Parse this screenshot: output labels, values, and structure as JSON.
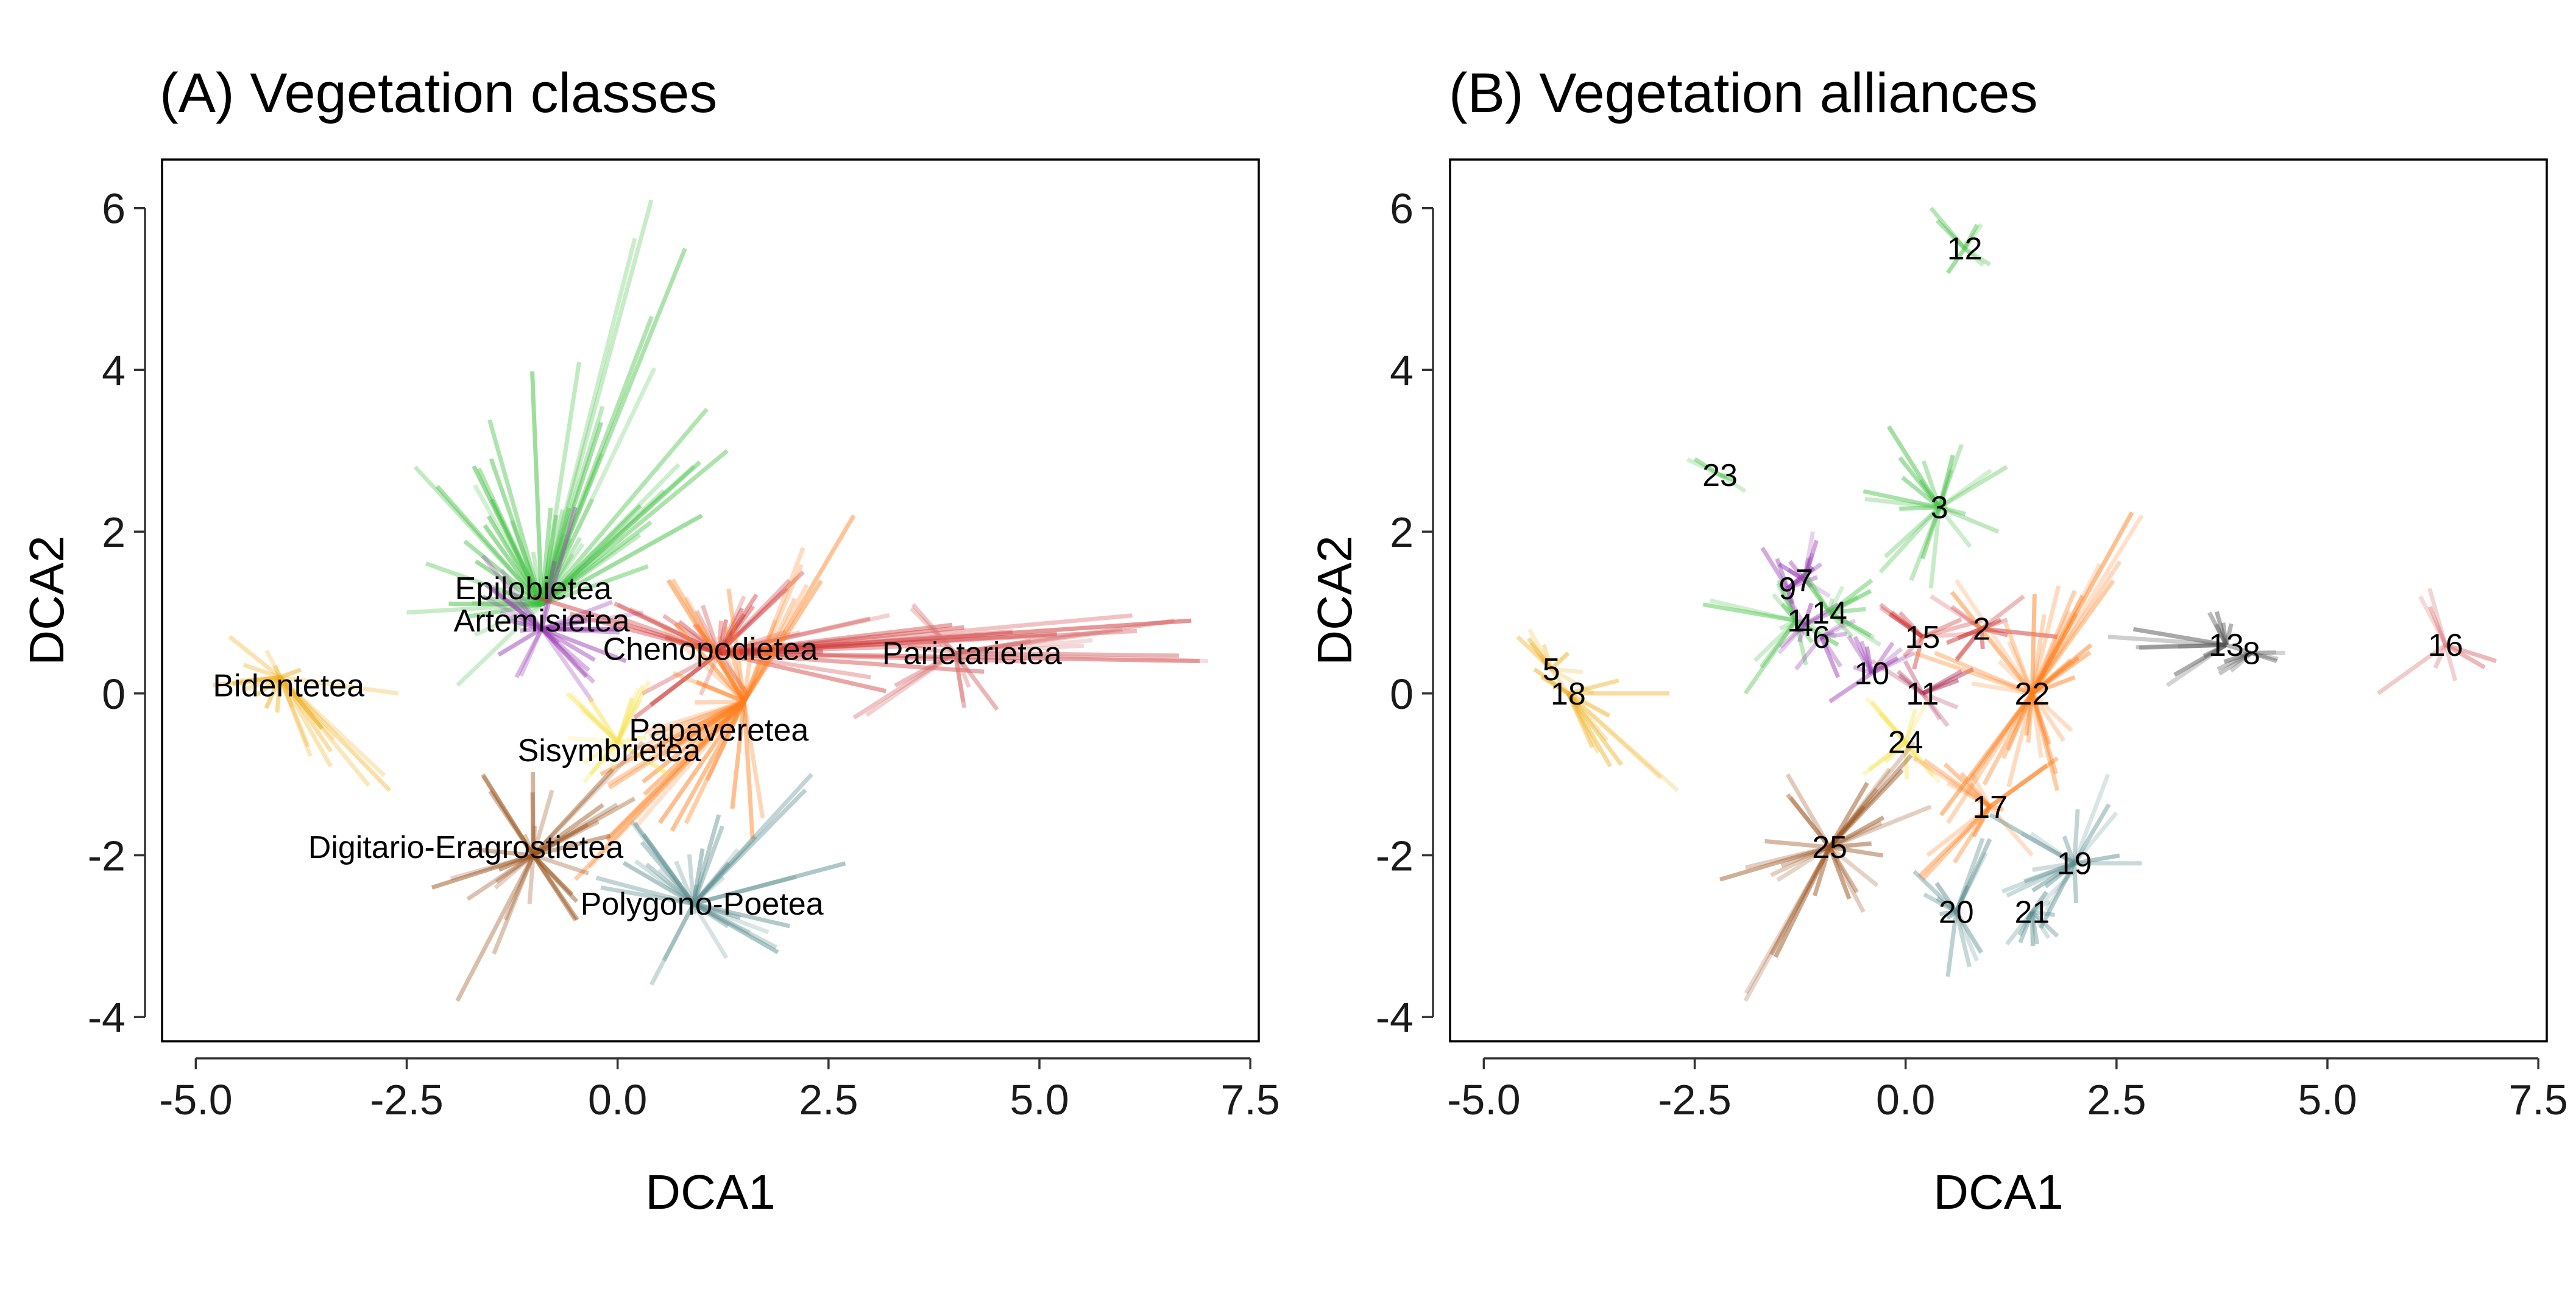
{
  "chart_data": [
    {
      "type": "scatter",
      "subtype": "spider",
      "title": "(A) Vegetation classes",
      "xlabel": "DCA1",
      "ylabel": "DCA2",
      "xlim": [
        -5.4,
        7.6
      ],
      "ylim": [
        -4.3,
        6.6
      ],
      "xticks": [
        "-5.0",
        "-2.5",
        "0.0",
        "2.5",
        "5.0",
        "7.5"
      ],
      "yticks": [
        "-4",
        "-2",
        "0",
        "2",
        "4",
        "6"
      ],
      "xtick_values": [
        -5,
        -2.5,
        0,
        2.5,
        5,
        7.5
      ],
      "ytick_values": [
        -4,
        -2,
        0,
        2,
        4,
        6
      ],
      "grid": false,
      "groups": [
        {
          "label": "Epilobietea",
          "color": "#3fbf3f",
          "center": [
            -0.9,
            1.1
          ],
          "label_pos": [
            -1.0,
            1.3
          ],
          "spread": [
            [
              -2.4,
              2.8
            ],
            [
              -1.5,
              2.9
            ],
            [
              0.4,
              6.1
            ],
            [
              0.8,
              5.5
            ],
            [
              1.3,
              3.0
            ],
            [
              1.0,
              2.2
            ],
            [
              -2.5,
              1.0
            ],
            [
              -1.9,
              0.1
            ],
            [
              -0.3,
              2.4
            ]
          ],
          "n": 55
        },
        {
          "label": "Artemisietea",
          "color": "#9b3fb5",
          "center": [
            -0.9,
            0.8
          ],
          "label_pos": [
            -0.9,
            0.9
          ],
          "spread": [
            [
              -1.6,
              1.7
            ],
            [
              -0.5,
              2.3
            ],
            [
              0.3,
              1.0
            ],
            [
              -0.3,
              -0.1
            ],
            [
              -1.2,
              0.2
            ],
            [
              -1.6,
              1.2
            ],
            [
              0.1,
              0.4
            ]
          ],
          "n": 30
        },
        {
          "label": "Chenopodietea",
          "color": "#d03535",
          "center": [
            1.2,
            0.5
          ],
          "label_pos": [
            1.1,
            0.55
          ],
          "spread": [
            [
              -1.0,
              1.2
            ],
            [
              6.9,
              0.4
            ],
            [
              6.8,
              0.9
            ],
            [
              2.2,
              1.5
            ],
            [
              0.2,
              -0.3
            ],
            [
              1.5,
              1.2
            ],
            [
              3.0,
              0.2
            ],
            [
              0.0,
              1.1
            ]
          ],
          "n": 45
        },
        {
          "label": "Parietarietea",
          "color": "#d76b6b",
          "center": [
            4.0,
            0.5
          ],
          "label_pos": [
            4.2,
            0.5
          ],
          "spread": [
            [
              2.8,
              -0.3
            ],
            [
              7.0,
              0.4
            ],
            [
              6.6,
              0.9
            ],
            [
              3.5,
              1.1
            ],
            [
              4.5,
              -0.2
            ]
          ],
          "n": 20
        },
        {
          "label": "Bidentetea",
          "color": "#f0b020",
          "center": [
            -4.0,
            0.2
          ],
          "label_pos": [
            -3.9,
            0.1
          ],
          "spread": [
            [
              -4.6,
              0.7
            ],
            [
              -2.7,
              -1.2
            ],
            [
              -2.6,
              0.0
            ],
            [
              -4.8,
              0.1
            ],
            [
              -3.4,
              -0.9
            ]
          ],
          "n": 25
        },
        {
          "label": "Papaveretea",
          "color": "#ff7f1e",
          "center": [
            1.5,
            -0.1
          ],
          "label_pos": [
            1.2,
            -0.45
          ],
          "spread": [
            [
              -0.5,
              -2.3
            ],
            [
              2.8,
              2.2
            ],
            [
              0.5,
              -1.6
            ],
            [
              0.6,
              1.4
            ],
            [
              2.2,
              1.8
            ],
            [
              -0.2,
              -1.0
            ],
            [
              1.6,
              -1.8
            ]
          ],
          "n": 45
        },
        {
          "label": "Sisymbrietea",
          "color": "#f7e350",
          "center": [
            0.0,
            -0.6
          ],
          "label_pos": [
            -0.1,
            -0.7
          ],
          "spread": [
            [
              -0.6,
              0.0
            ],
            [
              0.6,
              -1.0
            ],
            [
              -0.4,
              -1.1
            ],
            [
              0.3,
              0.1
            ]
          ],
          "n": 18
        },
        {
          "label": "Digitario-Eragrostietea",
          "color": "#9a5420",
          "center": [
            -1.0,
            -2.0
          ],
          "label_pos": [
            -1.8,
            -1.9
          ],
          "spread": [
            [
              -1.9,
              -3.8
            ],
            [
              -2.2,
              -2.4
            ],
            [
              0.3,
              -0.6
            ],
            [
              -0.5,
              -2.8
            ],
            [
              -1.6,
              -1.0
            ],
            [
              0.2,
              -1.3
            ]
          ],
          "n": 35
        },
        {
          "label": "Polygono-Poetea",
          "color": "#5e8f91",
          "center": [
            0.9,
            -2.6
          ],
          "label_pos": [
            1.0,
            -2.6
          ],
          "spread": [
            [
              0.4,
              -3.6
            ],
            [
              2.7,
              -2.1
            ],
            [
              2.3,
              -1.0
            ],
            [
              0.2,
              -1.6
            ],
            [
              1.9,
              -3.2
            ],
            [
              -0.2,
              -2.4
            ],
            [
              1.2,
              -1.5
            ]
          ],
          "n": 35
        }
      ]
    },
    {
      "type": "scatter",
      "subtype": "spider",
      "title": "(B) Vegetation alliances",
      "xlabel": "DCA1",
      "ylabel": "DCA2",
      "xlim": [
        -5.4,
        7.6
      ],
      "ylim": [
        -4.3,
        6.6
      ],
      "xticks": [
        "-5.0",
        "-2.5",
        "0.0",
        "2.5",
        "5.0",
        "7.5"
      ],
      "yticks": [
        "-4",
        "-2",
        "0",
        "2",
        "4",
        "6"
      ],
      "xtick_values": [
        -5,
        -2.5,
        0,
        2.5,
        5,
        7.5
      ],
      "ytick_values": [
        -4,
        -2,
        0,
        2,
        4,
        6
      ],
      "grid": false,
      "groups": [
        {
          "label": "12",
          "color": "#48c148",
          "center": [
            0.7,
            5.5
          ],
          "spread": [
            [
              0.3,
              6.0
            ],
            [
              1.0,
              5.3
            ],
            [
              0.5,
              5.2
            ],
            [
              0.9,
              5.8
            ]
          ],
          "n": 8
        },
        {
          "label": "23",
          "color": "#48c148",
          "center": [
            -2.2,
            2.7
          ],
          "spread": [
            [
              -2.5,
              2.9
            ],
            [
              -1.9,
              2.5
            ]
          ],
          "n": 5
        },
        {
          "label": "3",
          "color": "#48c148",
          "center": [
            0.4,
            2.3
          ],
          "spread": [
            [
              -0.2,
              3.3
            ],
            [
              1.2,
              2.8
            ],
            [
              -0.3,
              1.5
            ],
            [
              0.3,
              1.3
            ],
            [
              1.1,
              2.0
            ],
            [
              -0.5,
              2.5
            ]
          ],
          "n": 22
        },
        {
          "label": "9",
          "color": "#9b3fb5",
          "center": [
            -1.4,
            1.3
          ],
          "spread": [
            [
              -1.7,
              1.8
            ],
            [
              -1.0,
              1.6
            ],
            [
              -1.3,
              0.9
            ]
          ],
          "n": 10
        },
        {
          "label": "7",
          "color": "#9b3fb5",
          "center": [
            -1.2,
            1.4
          ],
          "spread": [
            [
              -1.1,
              2.0
            ],
            [
              -0.9,
              1.2
            ],
            [
              -1.5,
              1.6
            ]
          ],
          "n": 10
        },
        {
          "label": "1",
          "color": "#48c148",
          "center": [
            -1.3,
            0.9
          ],
          "spread": [
            [
              -2.4,
              1.1
            ],
            [
              -1.9,
              0.0
            ],
            [
              -1.5,
              1.4
            ],
            [
              -0.8,
              0.6
            ]
          ],
          "n": 15
        },
        {
          "label": "4",
          "color": "#9b3fb5",
          "center": [
            -1.2,
            0.85
          ],
          "spread": [
            [
              -1.5,
              0.5
            ],
            [
              -0.8,
              1.1
            ],
            [
              -1.4,
              1.2
            ]
          ],
          "n": 8
        },
        {
          "label": "6",
          "color": "#9b3fb5",
          "center": [
            -1.0,
            0.7
          ],
          "spread": [
            [
              -1.3,
              0.3
            ],
            [
              -0.6,
              0.9
            ],
            [
              -0.8,
              0.2
            ]
          ],
          "n": 8
        },
        {
          "label": "14",
          "color": "#48c148",
          "center": [
            -0.9,
            1.0
          ],
          "spread": [
            [
              -0.4,
              1.4
            ],
            [
              -0.3,
              0.6
            ],
            [
              -1.2,
              1.5
            ]
          ],
          "n": 12
        },
        {
          "label": "10",
          "color": "#9b3fb5",
          "center": [
            -0.4,
            0.25
          ],
          "spread": [
            [
              -0.9,
              -0.1
            ],
            [
              0.1,
              0.5
            ],
            [
              -0.6,
              0.7
            ]
          ],
          "n": 10
        },
        {
          "label": "11",
          "color": "#b0305a",
          "center": [
            0.2,
            0.0
          ],
          "spread": [
            [
              -0.4,
              0.4
            ],
            [
              0.8,
              0.3
            ],
            [
              0.5,
              -0.4
            ]
          ],
          "n": 10
        },
        {
          "label": "15",
          "color": "#d03535",
          "center": [
            0.2,
            0.7
          ],
          "spread": [
            [
              -0.3,
              1.1
            ],
            [
              0.9,
              0.9
            ],
            [
              0.1,
              0.3
            ]
          ],
          "n": 10
        },
        {
          "label": "2",
          "color": "#d03535",
          "center": [
            0.9,
            0.8
          ],
          "spread": [
            [
              0.3,
              1.2
            ],
            [
              1.8,
              0.7
            ],
            [
              0.6,
              0.4
            ],
            [
              1.4,
              1.2
            ]
          ],
          "n": 12
        },
        {
          "label": "22",
          "color": "#ff7f1e",
          "center": [
            1.5,
            0.0
          ],
          "spread": [
            [
              0.5,
              -1.6
            ],
            [
              2.8,
              2.2
            ],
            [
              0.6,
              1.4
            ],
            [
              2.3,
              1.6
            ],
            [
              1.8,
              -1.2
            ],
            [
              0.1,
              0.5
            ],
            [
              2.2,
              0.6
            ]
          ],
          "n": 40
        },
        {
          "label": "13",
          "color": "#555555",
          "center": [
            3.8,
            0.6
          ],
          "spread": [
            [
              2.4,
              0.7
            ],
            [
              4.4,
              0.4
            ],
            [
              3.1,
              0.1
            ],
            [
              3.6,
              1.0
            ]
          ],
          "n": 15
        },
        {
          "label": "8",
          "color": "#555555",
          "center": [
            4.1,
            0.5
          ],
          "spread": [
            [
              4.5,
              0.5
            ],
            [
              3.7,
              0.3
            ]
          ],
          "n": 8
        },
        {
          "label": "16",
          "color": "#d76b6b",
          "center": [
            6.4,
            0.6
          ],
          "spread": [
            [
              5.6,
              0.0
            ],
            [
              7.0,
              0.4
            ],
            [
              6.1,
              1.2
            ]
          ],
          "n": 8
        },
        {
          "label": "5",
          "color": "#f0b020",
          "center": [
            -4.2,
            0.3
          ],
          "spread": [
            [
              -4.6,
              0.7
            ],
            [
              -3.7,
              0.0
            ],
            [
              -4.0,
              0.5
            ]
          ],
          "n": 10
        },
        {
          "label": "18",
          "color": "#f0b020",
          "center": [
            -4.0,
            0.0
          ],
          "spread": [
            [
              -2.7,
              -1.2
            ],
            [
              -2.8,
              0.0
            ],
            [
              -3.5,
              -0.9
            ],
            [
              -4.4,
              0.3
            ]
          ],
          "n": 15
        },
        {
          "label": "24",
          "color": "#f7e350",
          "center": [
            0.0,
            -0.6
          ],
          "spread": [
            [
              -0.4,
              -0.1
            ],
            [
              0.4,
              -1.1
            ],
            [
              -0.5,
              -1.0
            ],
            [
              0.3,
              0.0
            ]
          ],
          "n": 12
        },
        {
          "label": "17",
          "color": "#ff7f1e",
          "center": [
            1.0,
            -1.4
          ],
          "spread": [
            [
              0.2,
              -2.3
            ],
            [
              1.8,
              -0.8
            ],
            [
              0.1,
              -0.8
            ],
            [
              1.5,
              -2.0
            ]
          ],
          "n": 15
        },
        {
          "label": "25",
          "color": "#9a5420",
          "center": [
            -0.9,
            -1.9
          ],
          "spread": [
            [
              -1.9,
              -3.8
            ],
            [
              -2.2,
              -2.3
            ],
            [
              0.1,
              -0.6
            ],
            [
              -0.5,
              -2.7
            ],
            [
              -1.4,
              -1.0
            ],
            [
              0.3,
              -1.4
            ]
          ],
          "n": 30
        },
        {
          "label": "19",
          "color": "#5e8f91",
          "center": [
            2.0,
            -2.1
          ],
          "spread": [
            [
              1.0,
              -1.5
            ],
            [
              2.8,
              -2.1
            ],
            [
              2.4,
              -1.0
            ],
            [
              1.6,
              -2.9
            ],
            [
              1.2,
              -2.5
            ]
          ],
          "n": 20
        },
        {
          "label": "20",
          "color": "#5e8f91",
          "center": [
            0.6,
            -2.7
          ],
          "spread": [
            [
              0.5,
              -3.5
            ],
            [
              1.0,
              -1.8
            ],
            [
              0.1,
              -2.2
            ],
            [
              0.9,
              -3.2
            ]
          ],
          "n": 15
        },
        {
          "label": "21",
          "color": "#5e8f91",
          "center": [
            1.5,
            -2.7
          ],
          "spread": [
            [
              1.2,
              -3.1
            ],
            [
              2.0,
              -2.2
            ],
            [
              1.8,
              -3.0
            ]
          ],
          "n": 12
        }
      ]
    }
  ]
}
